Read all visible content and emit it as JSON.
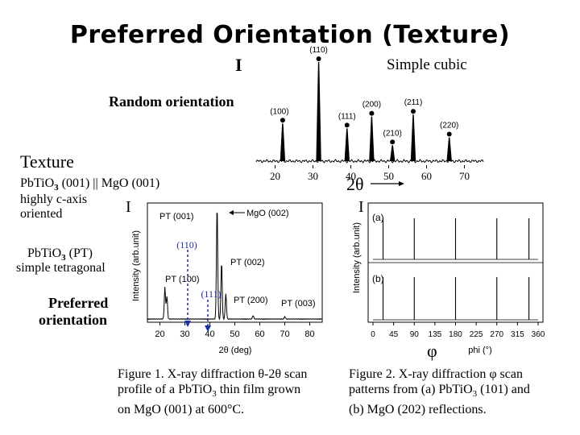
{
  "slide": {
    "title": "Preferred Orientation (Texture)",
    "label_I_top": "I",
    "simple_cubic": "Simple cubic",
    "random_orientation": "Random orientation",
    "texture": "Texture",
    "pbtio_line": "PbTiO3 (001) || MgO (001)",
    "highly_c_axis": "highly c-axis",
    "oriented": "oriented",
    "label_I_left": "I",
    "pt_line1": "PbTiO3 (PT)",
    "pt_line2": "simple tetragonal",
    "preferred_1": "Preferred",
    "preferred_2": "orientation",
    "two_theta": "2θ",
    "label_I_right": "I",
    "phi_symbol": "φ",
    "ann_110": "(110)",
    "ann_111": "(111)",
    "fig1_caption_1": "Figure 1. X-ray diffraction θ-2θ scan",
    "fig1_caption_2": "profile of a PbTiO3 thin film grown",
    "fig1_caption_3": "on MgO (001) at 600°C.",
    "fig2_caption_1": "Figure 2. X-ray diffraction φ scan",
    "fig2_caption_2": "patterns from (a) PbTiO3 (101) and",
    "fig2_caption_3": "(b) MgO (202) reflections."
  },
  "chart_data": [
    {
      "type": "line",
      "name": "random",
      "xlim": [
        15,
        75
      ],
      "x_ticks": [
        20,
        30,
        40,
        50,
        60,
        70
      ],
      "x_tick_labels": [
        "20",
        "30",
        "40",
        "50",
        "60",
        "70"
      ],
      "peaks": [
        {
          "label": "(100)",
          "x": 22.0,
          "height": 0.38
        },
        {
          "label": "(110)",
          "x": 31.5,
          "height": 1.0
        },
        {
          "label": "(111)",
          "x": 39.0,
          "height": 0.33
        },
        {
          "label": "(200)",
          "x": 45.5,
          "height": 0.45
        },
        {
          "label": "(210)",
          "x": 51.0,
          "height": 0.16
        },
        {
          "label": "(211)",
          "x": 56.5,
          "height": 0.47
        },
        {
          "label": "(220)",
          "x": 66.0,
          "height": 0.24
        }
      ]
    },
    {
      "type": "line",
      "name": "theta-2theta",
      "xlabel": "2θ (deg)",
      "ylabel": "Intensity (arb.unit)",
      "xlim": [
        15,
        85
      ],
      "x_ticks": [
        20,
        30,
        40,
        50,
        60,
        70,
        80
      ],
      "x_tick_labels": [
        "20",
        "30",
        "40",
        "50",
        "60",
        "70",
        "80"
      ],
      "peaks": [
        {
          "label": "PT (001)",
          "x": 22.0,
          "height": 0.28
        },
        {
          "label": "PT (100)",
          "x": 22.8,
          "height": 0.2
        },
        {
          "label": "MgO (002)",
          "x": 42.9,
          "height": 1.0
        },
        {
          "label": "PT (002)",
          "x": 44.7,
          "height": 0.5
        },
        {
          "label": "",
          "x": 46.4,
          "height": 0.22
        },
        {
          "label": "PT (200)",
          "x": 57.3,
          "height": 0.03
        },
        {
          "label": "PT (003)",
          "x": 70.0,
          "height": 0.02
        }
      ]
    },
    {
      "type": "line",
      "name": "phi",
      "xlabel": "phi (°)",
      "ylabel": "Intensity (arb.unit)",
      "xlim": [
        0,
        360
      ],
      "x_ticks": [
        0,
        45,
        90,
        135,
        180,
        225,
        270,
        315,
        360
      ],
      "x_tick_labels": [
        "0",
        "45",
        "90",
        "135",
        "180",
        "225",
        "270",
        "315",
        "360"
      ],
      "panels": [
        {
          "label": "(a)",
          "peaks": [
            {
              "x": 22
            },
            {
              "x": 90
            },
            {
              "x": 180
            },
            {
              "x": 270
            },
            {
              "x": 340
            }
          ],
          "height": 0.85
        },
        {
          "label": "(b)",
          "peaks": [
            {
              "x": 22
            },
            {
              "x": 90
            },
            {
              "x": 180
            },
            {
              "x": 270
            },
            {
              "x": 340
            }
          ],
          "height": 0.9
        }
      ]
    }
  ]
}
